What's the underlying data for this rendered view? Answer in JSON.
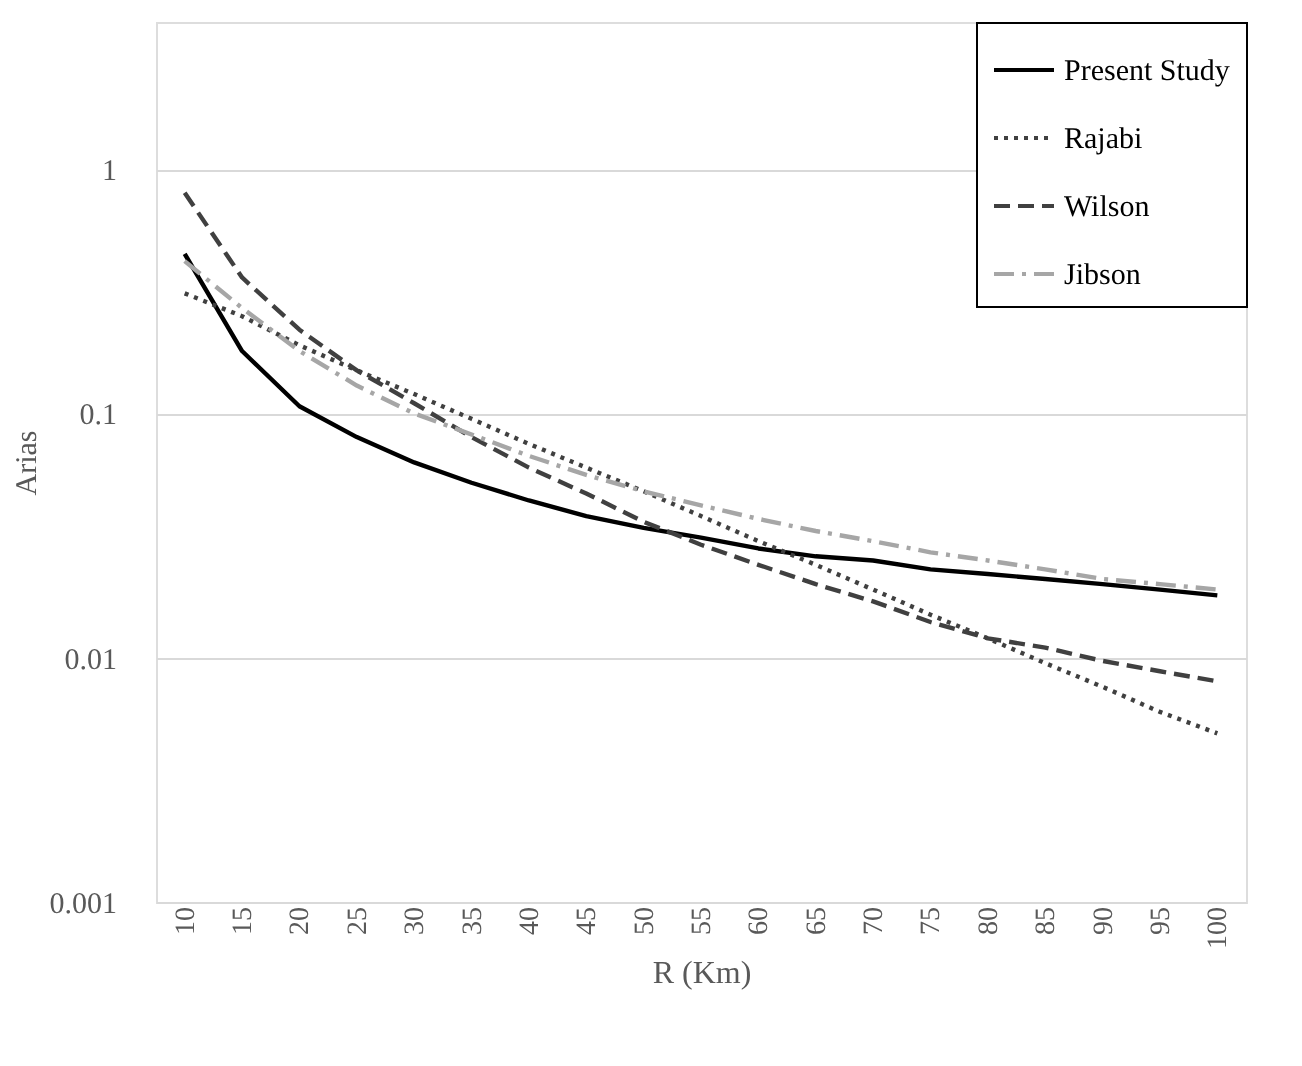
{
  "chart_data": {
    "type": "line",
    "xlabel": "R (Km)",
    "ylabel": "Arias",
    "categories": [
      "10",
      "15",
      "20",
      "25",
      "30",
      "35",
      "40",
      "45",
      "50",
      "55",
      "60",
      "65",
      "70",
      "75",
      "80",
      "85",
      "90",
      "95",
      "100"
    ],
    "series": [
      {
        "name": "Present Study",
        "color": "#000000",
        "line_style": "solid",
        "values": [
          0.45,
          0.18,
          0.107,
          0.08,
          0.063,
          0.052,
          0.044,
          0.038,
          0.034,
          0.031,
          0.028,
          0.026,
          0.025,
          0.023,
          0.022,
          0.021,
          0.02,
          0.019,
          0.018
        ]
      },
      {
        "name": "Rajabi",
        "color": "#404040",
        "line_style": "dotted",
        "values": [
          0.31,
          0.25,
          0.19,
          0.15,
          0.12,
          0.095,
          0.075,
          0.06,
          0.048,
          0.038,
          0.03,
          0.024,
          0.019,
          0.015,
          0.012,
          0.0095,
          0.0076,
          0.006,
          0.0049
        ]
      },
      {
        "name": "Wilson",
        "color": "#404040",
        "line_style": "dashed",
        "values": [
          0.8,
          0.36,
          0.22,
          0.15,
          0.11,
          0.08,
          0.06,
          0.047,
          0.036,
          0.029,
          0.024,
          0.02,
          0.017,
          0.014,
          0.012,
          0.011,
          0.0097,
          0.0088,
          0.008
        ]
      },
      {
        "name": "Jibson",
        "color": "#a6a6a6",
        "line_style": "dashdot",
        "values": [
          0.42,
          0.27,
          0.18,
          0.13,
          0.1,
          0.082,
          0.067,
          0.056,
          0.048,
          0.042,
          0.037,
          0.033,
          0.03,
          0.027,
          0.025,
          0.023,
          0.021,
          0.02,
          0.019
        ]
      }
    ],
    "log": "y",
    "ylim": [
      0.001,
      4
    ],
    "yticks": [
      0.001,
      0.01,
      0.1,
      1
    ],
    "grid": "y",
    "legend": "top right",
    "marker": "none"
  }
}
